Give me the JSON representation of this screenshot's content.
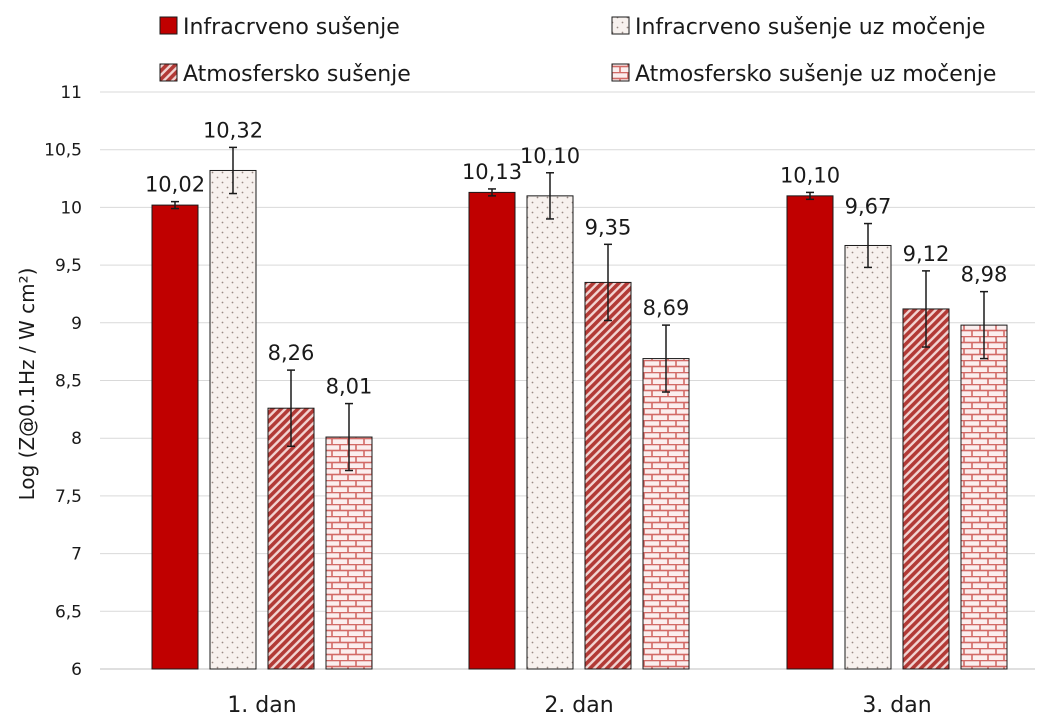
{
  "chart_data": {
    "type": "bar",
    "categories": [
      "1. dan",
      "2. dan",
      "3. dan"
    ],
    "series": [
      {
        "name": "Infracrveno sušenje",
        "values": [
          10.02,
          10.13,
          10.1
        ],
        "errors": [
          0.03,
          0.03,
          0.03
        ],
        "labels": [
          "10,02",
          "10,13",
          "10,10"
        ],
        "fill": "solid",
        "color": "#c00000"
      },
      {
        "name": "Infracrveno sušenje uz močenje",
        "values": [
          10.32,
          10.1,
          9.67
        ],
        "errors": [
          0.2,
          0.2,
          0.19
        ],
        "labels": [
          "10,32",
          "10,10",
          "9,67"
        ],
        "fill": "dots",
        "color": "#f5efec"
      },
      {
        "name": "Atmosfersko sušenje",
        "values": [
          8.26,
          9.35,
          9.12
        ],
        "errors": [
          0.33,
          0.33,
          0.33
        ],
        "labels": [
          "8,26",
          "9,35",
          "9,12"
        ],
        "fill": "diagonal",
        "color": "#c0504d"
      },
      {
        "name": "Atmosfersko sušenje uz močenje",
        "values": [
          8.01,
          8.69,
          8.98
        ],
        "errors": [
          0.29,
          0.29,
          0.29
        ],
        "labels": [
          "8,01",
          "8,69",
          "8,98"
        ],
        "fill": "brick",
        "color": "#d99694"
      }
    ],
    "ylabel": "Log (Z@0.1Hz / W cm²)",
    "xlabel": "",
    "ylim": [
      6,
      11
    ],
    "yticks": [
      6,
      6.5,
      7,
      7.5,
      8,
      8.5,
      9,
      9.5,
      10,
      10.5,
      11
    ],
    "ytick_labels": [
      "6",
      "6,5",
      "7",
      "7,5",
      "8",
      "8,5",
      "9",
      "9,5",
      "10",
      "10,5",
      "11"
    ],
    "grid": true,
    "legend": "top"
  }
}
